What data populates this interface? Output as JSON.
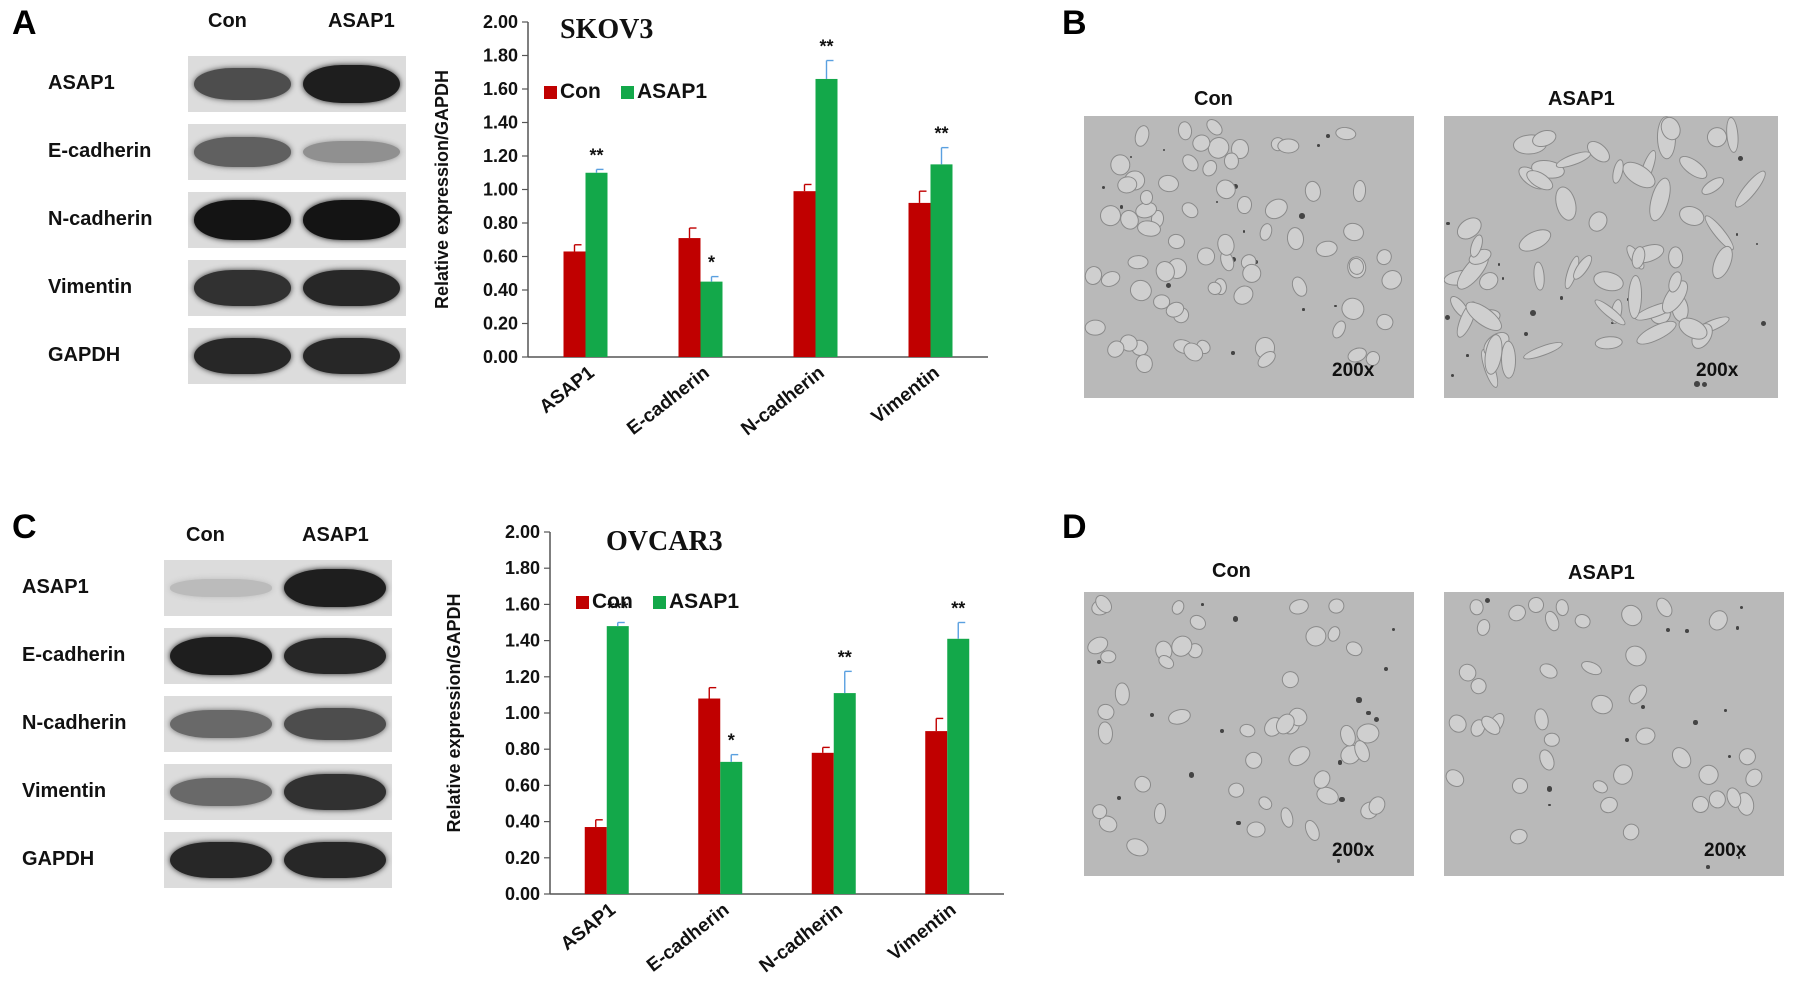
{
  "panels": {
    "A": "A",
    "B": "B",
    "C": "C",
    "D": "D"
  },
  "blot_A": {
    "columns": [
      "Con",
      "ASAP1"
    ],
    "rows": [
      "ASAP1",
      "E-cadherin",
      "N-cadherin",
      "Vimentin",
      "GAPDH"
    ],
    "intensity": [
      [
        0.7,
        0.95
      ],
      [
        0.6,
        0.35
      ],
      [
        1.0,
        1.0
      ],
      [
        0.85,
        0.9
      ],
      [
        0.9,
        0.9
      ]
    ]
  },
  "blot_C": {
    "columns": [
      "Con",
      "ASAP1"
    ],
    "rows": [
      "ASAP1",
      "E-cadherin",
      "N-cadherin",
      "Vimentin",
      "GAPDH"
    ],
    "intensity": [
      [
        0.12,
        0.95
      ],
      [
        0.95,
        0.9
      ],
      [
        0.55,
        0.7
      ],
      [
        0.55,
        0.85
      ],
      [
        0.9,
        0.9
      ]
    ]
  },
  "chart_data": [
    {
      "type": "bar",
      "title": "SKOV3",
      "ylabel": "Relative expression/GAPDH",
      "categories": [
        "ASAP1",
        "E-cadherin",
        "N-cadherin",
        "Vimentin"
      ],
      "series": [
        {
          "name": "Con",
          "values": [
            0.63,
            0.71,
            0.99,
            0.92
          ],
          "errors": [
            0.04,
            0.06,
            0.04,
            0.07
          ],
          "color": "#c00000"
        },
        {
          "name": "ASAP1",
          "values": [
            1.1,
            0.45,
            1.66,
            1.15
          ],
          "errors": [
            0.02,
            0.03,
            0.11,
            0.1
          ],
          "color": "#13a84a"
        }
      ],
      "significance": [
        "**",
        "*",
        "**",
        "**"
      ],
      "ylim": [
        0,
        2.0
      ],
      "yticks": [
        "0.00",
        "0.20",
        "0.40",
        "0.60",
        "0.80",
        "1.00",
        "1.20",
        "1.40",
        "1.60",
        "1.80",
        "2.00"
      ],
      "legend": "top-left"
    },
    {
      "type": "bar",
      "title": "OVCAR3",
      "ylabel": "Relative expression/GAPDH",
      "categories": [
        "ASAP1",
        "E-cadherin",
        "N-cadherin",
        "Vimentin"
      ],
      "series": [
        {
          "name": "Con",
          "values": [
            0.37,
            1.08,
            0.78,
            0.9
          ],
          "errors": [
            0.04,
            0.06,
            0.03,
            0.07
          ],
          "color": "#c00000"
        },
        {
          "name": "ASAP1",
          "values": [
            1.48,
            0.73,
            1.11,
            1.41
          ],
          "errors": [
            0.02,
            0.04,
            0.12,
            0.09
          ],
          "color": "#13a84a"
        }
      ],
      "significance": [
        "***",
        "*",
        "**",
        "**"
      ],
      "ylim": [
        0,
        2.0
      ],
      "yticks": [
        "0.00",
        "0.20",
        "0.40",
        "0.60",
        "0.80",
        "1.00",
        "1.20",
        "1.40",
        "1.60",
        "1.80",
        "2.00"
      ],
      "legend": "top-left"
    }
  ],
  "micro_B": {
    "left": "Con",
    "right": "ASAP1",
    "magnification": "200x"
  },
  "micro_D": {
    "left": "Con",
    "right": "ASAP1",
    "magnification": "200x"
  }
}
